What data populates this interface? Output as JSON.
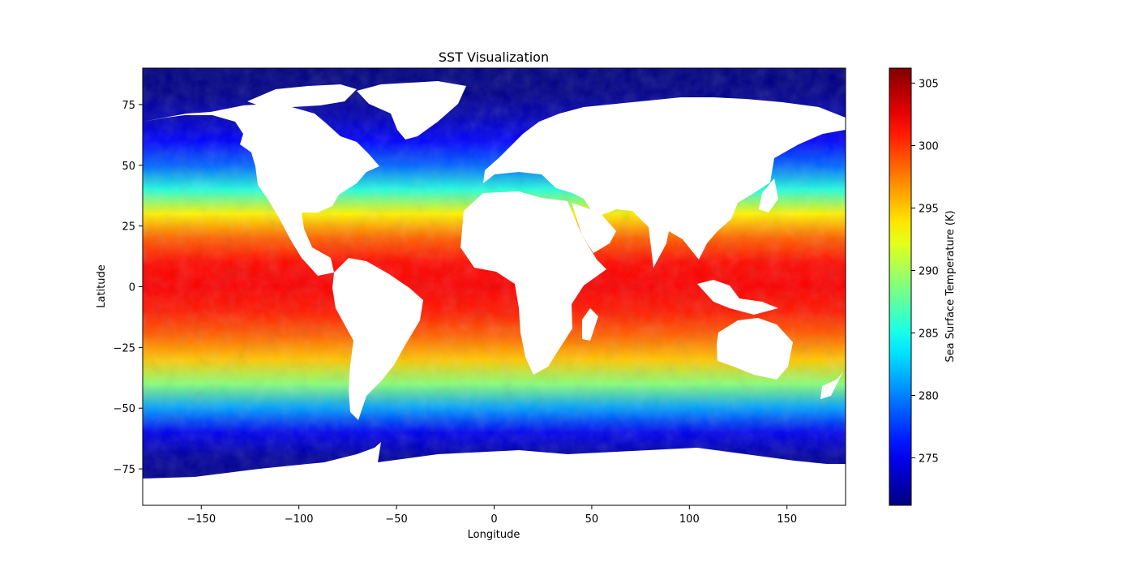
{
  "chart_data": {
    "type": "heatmap",
    "title": "SST Visualization",
    "xlabel": "Longitude",
    "ylabel": "Latitude",
    "xlim": [
      -180,
      180
    ],
    "ylim": [
      -90,
      90
    ],
    "xticks": [
      -150,
      -100,
      -50,
      0,
      50,
      100,
      150
    ],
    "xtick_labels": [
      "−150",
      "−100",
      "−50",
      "0",
      "50",
      "100",
      "150"
    ],
    "yticks": [
      75,
      50,
      25,
      0,
      -25,
      -50,
      -75
    ],
    "ytick_labels": [
      "75",
      "50",
      "25",
      "0",
      "−25",
      "−50",
      "−75"
    ],
    "grid": false,
    "colormap": "jet",
    "land_color": "#ffffff",
    "colorbar": {
      "label": "Sea Surface Temperature (K)",
      "range": [
        271.2,
        306.2
      ],
      "ticks": [
        275,
        280,
        285,
        290,
        295,
        300,
        305
      ],
      "tick_labels": [
        "275",
        "280",
        "285",
        "290",
        "295",
        "300",
        "305"
      ]
    },
    "zonal_profile": {
      "lat": [
        90,
        80,
        70,
        60,
        50,
        40,
        30,
        20,
        10,
        0,
        -10,
        -20,
        -30,
        -40,
        -50,
        -60,
        -70,
        -80,
        -90
      ],
      "sst": [
        271.2,
        271.5,
        273.0,
        275.5,
        279.0,
        285.5,
        293.5,
        298.5,
        301.5,
        302.0,
        301.0,
        298.5,
        295.0,
        289.0,
        281.0,
        275.0,
        272.2,
        271.5,
        271.2
      ]
    }
  }
}
